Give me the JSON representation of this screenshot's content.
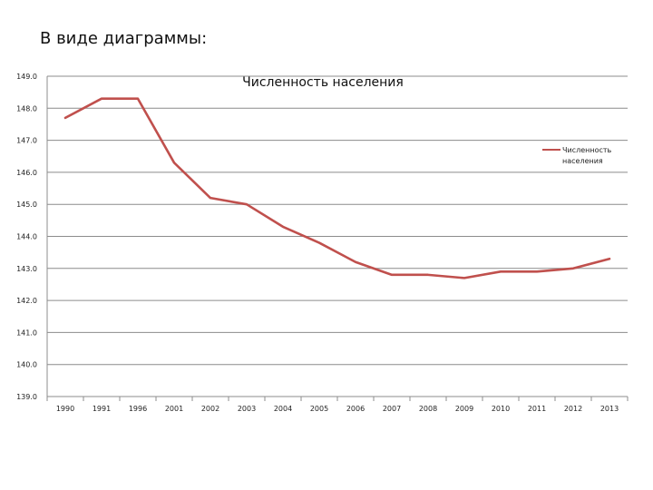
{
  "slide": {
    "heading": "В виде диаграммы:"
  },
  "chart_data": {
    "type": "line",
    "title": "Численность населения",
    "xlabel": "",
    "ylabel": "",
    "categories": [
      "1990",
      "1991",
      "1996",
      "2001",
      "2002",
      "2003",
      "2004",
      "2005",
      "2006",
      "2007",
      "2008",
      "2009",
      "2010",
      "2011",
      "2012",
      "2013"
    ],
    "series": [
      {
        "name": "Численность населения",
        "color": "#c0504d",
        "values": [
          147.7,
          148.3,
          148.3,
          146.3,
          145.2,
          145.0,
          144.3,
          143.8,
          143.2,
          142.8,
          142.8,
          142.7,
          142.9,
          142.9,
          143.0,
          143.3
        ]
      }
    ],
    "ylim": [
      139.0,
      149.0
    ],
    "ytick_labels": [
      "139.0",
      "140.0",
      "141.0",
      "142.0",
      "143.0",
      "144.0",
      "145.0",
      "146.0",
      "147.0",
      "148.0",
      "149.0"
    ],
    "grid": true,
    "legend_position": "right",
    "legend_lines": [
      "Численность",
      "населения"
    ]
  }
}
